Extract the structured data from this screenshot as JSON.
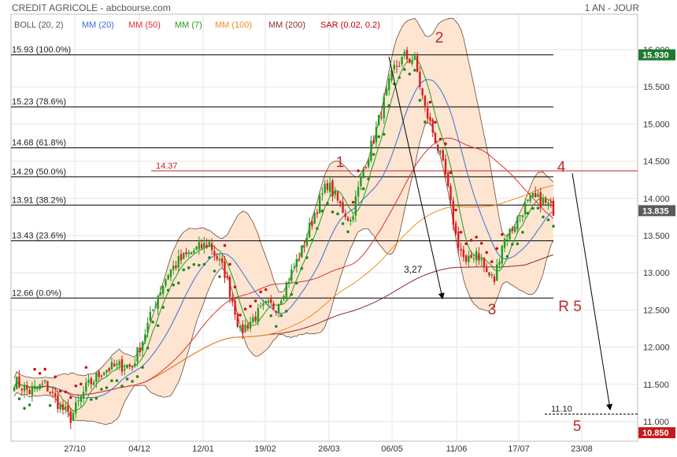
{
  "header": {
    "title": "CREDIT AGRICOLE - abcbourse.com",
    "period": "1 AN - JOUR"
  },
  "legend": [
    {
      "label": "BOLL (20, 2)",
      "color": "#555555"
    },
    {
      "label": "MM (20)",
      "color": "#3a6fd8"
    },
    {
      "label": "MM (50)",
      "color": "#e03030"
    },
    {
      "label": "MM (7)",
      "color": "#1e9e1e"
    },
    {
      "label": "MM (100)",
      "color": "#f08a1e"
    },
    {
      "label": "MM (200)",
      "color": "#8b2a2a"
    },
    {
      "label": "SAR (0.02, 0.2)",
      "color": "#c00000"
    }
  ],
  "colors": {
    "bollinger_fill": "#fde5d2",
    "bollinger_line": "#6b4a3a",
    "up_candle": "#1e9e1e",
    "down_candle": "#d81e1e",
    "annotation": "#c0282b",
    "last_price_badge": "#1d7a2e",
    "target_badge": "#c41a1a"
  },
  "chart_data": {
    "type": "candlestick",
    "yaxis": {
      "range": [
        10.8,
        16.3
      ],
      "ticks": [
        11.0,
        11.5,
        12.0,
        12.5,
        13.0,
        13.5,
        14.0,
        14.5,
        15.0,
        15.5,
        16.0
      ],
      "tick_labels": [
        "11.000",
        "11.500",
        "12.000",
        "12.500",
        "13.000",
        "13.500",
        "14.000",
        "14.500",
        "15.000",
        "15.500",
        "16.000"
      ],
      "position": "right"
    },
    "xaxis": {
      "tick_labels": [
        "27/10",
        "04/12",
        "12/01",
        "19/02",
        "26/03",
        "06/05",
        "11/06",
        "17/07",
        "23/08"
      ]
    },
    "grid": true,
    "price_badges": [
      {
        "value": 15.93,
        "label": "15.930",
        "kind": "high"
      },
      {
        "value": 13.835,
        "label": "13.835",
        "kind": "last"
      },
      {
        "value": 10.85,
        "label": "10.850",
        "kind": "target"
      }
    ],
    "fibonacci": [
      {
        "label": "15.93 (100.0%)",
        "value": 15.93
      },
      {
        "label": "15.23 (78.6%)",
        "value": 15.23
      },
      {
        "label": "14.68 (61.8%)",
        "value": 14.68
      },
      {
        "label": "14.29 (50.0%)",
        "value": 14.29
      },
      {
        "label": "13.91 (38.2%)",
        "value": 13.91
      },
      {
        "label": "13.43 (23.6%)",
        "value": 13.43
      },
      {
        "label": "12.66 (0.0%)",
        "value": 12.66
      }
    ],
    "resistance": {
      "label": "14.37",
      "value": 14.37
    },
    "target_level": {
      "label": "11.10",
      "value": 11.1
    },
    "annotations": [
      {
        "text": "1",
        "kind": "wave"
      },
      {
        "text": "2",
        "kind": "wave"
      },
      {
        "text": "3",
        "kind": "wave"
      },
      {
        "text": "4",
        "kind": "wave"
      },
      {
        "text": "R 5",
        "kind": "wave"
      },
      {
        "text": "5",
        "kind": "wave"
      },
      {
        "text": "3,27",
        "kind": "measure"
      }
    ],
    "price_anchors": [
      [
        0,
        11.55
      ],
      [
        6,
        11.4
      ],
      [
        12,
        11.5
      ],
      [
        18,
        11.2
      ],
      [
        22,
        11.05
      ],
      [
        28,
        11.45
      ],
      [
        35,
        11.7
      ],
      [
        42,
        11.75
      ],
      [
        46,
        11.75
      ],
      [
        50,
        12.1
      ],
      [
        56,
        12.7
      ],
      [
        60,
        13.0
      ],
      [
        64,
        13.15
      ],
      [
        70,
        13.3
      ],
      [
        76,
        13.4
      ],
      [
        82,
        13.0
      ],
      [
        86,
        12.5
      ],
      [
        88,
        12.2
      ],
      [
        92,
        12.35
      ],
      [
        98,
        12.55
      ],
      [
        102,
        12.55
      ],
      [
        106,
        12.85
      ],
      [
        112,
        13.3
      ],
      [
        117,
        13.8
      ],
      [
        122,
        14.2
      ],
      [
        127,
        13.9
      ],
      [
        131,
        13.7
      ],
      [
        136,
        14.4
      ],
      [
        140,
        14.8
      ],
      [
        144,
        15.3
      ],
      [
        148,
        15.75
      ],
      [
        152,
        15.9
      ],
      [
        156,
        15.85
      ],
      [
        160,
        15.2
      ],
      [
        164,
        14.8
      ],
      [
        168,
        14.3
      ],
      [
        172,
        13.5
      ],
      [
        176,
        13.1
      ],
      [
        180,
        13.3
      ],
      [
        184,
        13.0
      ],
      [
        187,
        12.9
      ],
      [
        190,
        13.4
      ],
      [
        194,
        13.6
      ],
      [
        198,
        13.85
      ],
      [
        202,
        14.0
      ],
      [
        206,
        13.95
      ],
      [
        210,
        13.85
      ]
    ]
  }
}
